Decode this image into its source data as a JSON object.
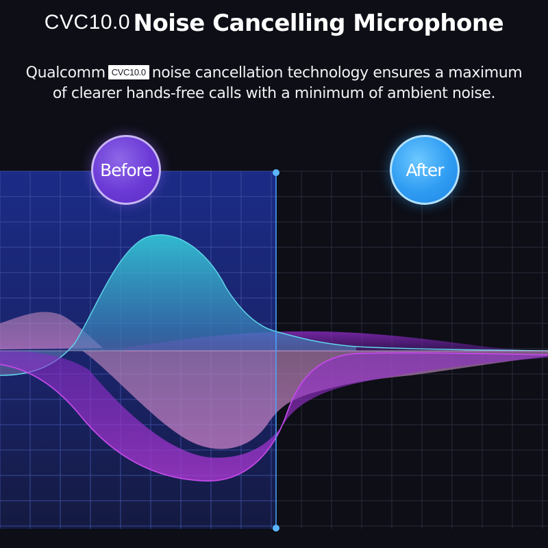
{
  "header": {
    "title_prefix": "CVC10.0",
    "title_main": "Noise Cancelling Microphone"
  },
  "description": {
    "line1_before": "Qualcomm",
    "badge": "CVC10.0",
    "line1_after": "noise cancellation technology ensures a maximum",
    "line2": "of clearer hands-free calls with a minimum of ambient noise."
  },
  "comparison": {
    "before_label": "Before",
    "after_label": "After"
  },
  "colors": {
    "background": "#0d0e16",
    "before_panel": "#1a2a78",
    "teal_wave": "#35c6d9",
    "pink_wave": "#c77fc0",
    "purple_wave": "#a020d8",
    "divider": "#4aa8ff"
  }
}
